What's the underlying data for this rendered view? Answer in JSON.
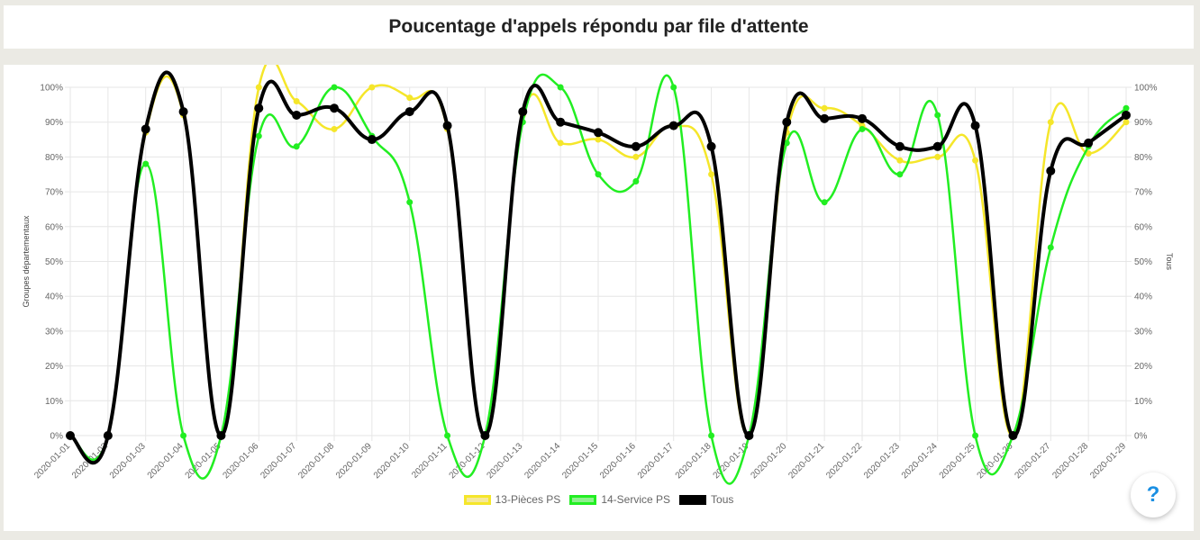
{
  "page": {
    "title": "Poucentage d'appels répondu par file d'attente",
    "help_label": "?"
  },
  "chart_data": {
    "type": "line",
    "title": "Poucentage d'appels répondu par file d'attente",
    "ylabel_left": "Groupes départementaux",
    "ylabel_right": "Tous",
    "ylim": [
      0,
      100
    ],
    "y_ticks": [
      "0%",
      "10%",
      "20%",
      "30%",
      "40%",
      "50%",
      "60%",
      "70%",
      "80%",
      "90%",
      "100%"
    ],
    "grid": true,
    "legend_position": "bottom",
    "categories": [
      "2020-01-01",
      "2020-01-02",
      "2020-01-03",
      "2020-01-04",
      "2020-01-05",
      "2020-01-06",
      "2020-01-07",
      "2020-01-08",
      "2020-01-09",
      "2020-01-10",
      "2020-01-11",
      "2020-01-12",
      "2020-01-13",
      "2020-01-14",
      "2020-01-15",
      "2020-01-16",
      "2020-01-17",
      "2020-01-18",
      "2020-01-19",
      "2020-01-20",
      "2020-01-21",
      "2020-01-22",
      "2020-01-23",
      "2020-01-24",
      "2020-01-25",
      "2020-01-26",
      "2020-01-27",
      "2020-01-28",
      "2020-01-29"
    ],
    "series": [
      {
        "name": "13-Pièces PS",
        "color": "#f5e62a",
        "fill": "#f5e89a",
        "values": [
          0,
          0,
          87,
          92,
          0,
          100,
          96,
          88,
          100,
          97,
          88,
          0,
          92,
          84,
          85,
          80,
          89,
          75,
          0,
          87,
          94,
          89,
          79,
          80,
          79,
          0,
          90,
          81,
          90
        ]
      },
      {
        "name": "14-Service PS",
        "color": "#22ee22",
        "fill": "#8ef08e",
        "values": [
          0,
          0,
          78,
          0,
          0,
          86,
          83,
          100,
          86,
          67,
          0,
          0,
          90,
          100,
          75,
          73,
          100,
          0,
          0,
          84,
          67,
          88,
          75,
          92,
          0,
          0,
          54,
          83,
          94
        ]
      },
      {
        "name": "Tous",
        "color": "#000000",
        "fill": "#000000",
        "values": [
          0,
          0,
          88,
          93,
          0,
          94,
          92,
          94,
          85,
          93,
          89,
          0,
          93,
          90,
          87,
          83,
          89,
          83,
          0,
          90,
          91,
          91,
          83,
          83,
          89,
          0,
          76,
          84,
          92
        ]
      }
    ]
  }
}
